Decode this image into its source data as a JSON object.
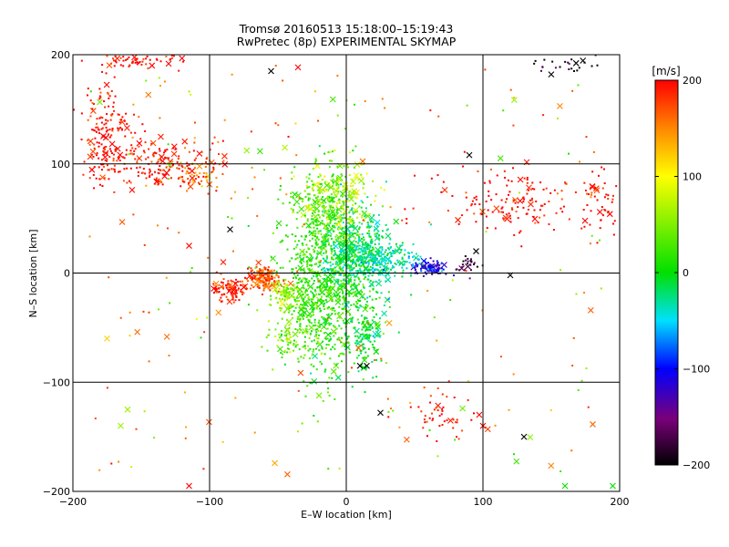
{
  "chart_data": {
    "type": "scatter",
    "title": "Tromsø 20160513 15:18:00–15:19:43",
    "subtitle": "RwPretec (8p) EXPERIMENTAL SKYMAP",
    "xlabel": "E–W location [km]",
    "ylabel": "N–S location [km]",
    "xlim": [
      -200,
      200
    ],
    "ylim": [
      -200,
      200
    ],
    "xticks": [
      -200,
      -100,
      0,
      100,
      200
    ],
    "yticks": [
      -200,
      -100,
      0,
      100,
      200
    ],
    "grid": true,
    "colorbar": {
      "label": "[m/s]",
      "range": [
        -200,
        200
      ],
      "ticks": [
        200,
        100,
        0,
        -100,
        -200
      ],
      "colormap": "rainbow: black(-200), purple, blue(-100), cyan, green(0), yellow(100), orange, red(200)"
    },
    "markers": {
      "small_points": "velocity detections",
      "x_marks": "velocity detections"
    },
    "clusters": [
      {
        "center": [
          -15,
          -15
        ],
        "extent": [
          30,
          70
        ],
        "velocity": 20,
        "count": 900
      },
      {
        "center": [
          10,
          20
        ],
        "extent": [
          25,
          35
        ],
        "velocity": -20,
        "count": 450
      },
      {
        "center": [
          -15,
          60
        ],
        "extent": [
          20,
          40
        ],
        "velocity": 30,
        "count": 250
      },
      {
        "center": [
          -5,
          70
        ],
        "extent": [
          25,
          30
        ],
        "velocity": 80,
        "count": 130
      },
      {
        "center": [
          -60,
          -5
        ],
        "extent": [
          12,
          10
        ],
        "velocity": 170,
        "count": 160
      },
      {
        "center": [
          -85,
          -15
        ],
        "extent": [
          12,
          10
        ],
        "velocity": 190,
        "count": 90
      },
      {
        "center": [
          -45,
          -20
        ],
        "extent": [
          10,
          12
        ],
        "velocity": 60,
        "count": 70
      },
      {
        "center": [
          60,
          5
        ],
        "extent": [
          12,
          6
        ],
        "velocity": -110,
        "count": 90
      },
      {
        "center": [
          90,
          10
        ],
        "extent": [
          10,
          8
        ],
        "velocity": -180,
        "count": 25
      },
      {
        "center": [
          30,
          10
        ],
        "extent": [
          25,
          12
        ],
        "velocity": -40,
        "count": 150
      },
      {
        "center": [
          15,
          -60
        ],
        "extent": [
          12,
          30
        ],
        "velocity": -10,
        "count": 120
      },
      {
        "center": [
          -40,
          -60
        ],
        "extent": [
          20,
          20
        ],
        "velocity": 50,
        "count": 60
      },
      {
        "center": [
          -175,
          130
        ],
        "extent": [
          15,
          40
        ],
        "velocity": 200,
        "count": 150
      },
      {
        "center": [
          -140,
          100
        ],
        "extent": [
          40,
          20
        ],
        "velocity": 195,
        "count": 180
      },
      {
        "center": [
          -155,
          195
        ],
        "extent": [
          25,
          6
        ],
        "velocity": 200,
        "count": 60
      },
      {
        "center": [
          -110,
          90
        ],
        "extent": [
          20,
          20
        ],
        "velocity": 160,
        "count": 60
      },
      {
        "center": [
          120,
          65
        ],
        "extent": [
          50,
          30
        ],
        "velocity": 200,
        "count": 150
      },
      {
        "center": [
          185,
          70
        ],
        "extent": [
          12,
          30
        ],
        "velocity": 200,
        "count": 40
      },
      {
        "center": [
          160,
          190
        ],
        "extent": [
          20,
          8
        ],
        "velocity": -190,
        "count": 25
      },
      {
        "center": [
          70,
          -130
        ],
        "extent": [
          20,
          20
        ],
        "velocity": 195,
        "count": 50
      },
      {
        "center": [
          0,
          0
        ],
        "extent": [
          190,
          190
        ],
        "velocity": 160,
        "count": 140
      },
      {
        "center": [
          0,
          0
        ],
        "extent": [
          190,
          190
        ],
        "velocity": 40,
        "count": 80
      }
    ],
    "outliers": [
      {
        "x": -90,
        "y": 10,
        "velocity": 190
      },
      {
        "x": -115,
        "y": 25,
        "velocity": 195
      },
      {
        "x": -175,
        "y": -60,
        "velocity": 120
      },
      {
        "x": -160,
        "y": -125,
        "velocity": 60
      },
      {
        "x": -165,
        "y": -140,
        "velocity": 60
      },
      {
        "x": 130,
        "y": -150,
        "velocity": -200
      },
      {
        "x": 90,
        "y": 108,
        "velocity": -200
      },
      {
        "x": -55,
        "y": 185,
        "velocity": -200
      },
      {
        "x": -85,
        "y": 40,
        "velocity": -200
      },
      {
        "x": 15,
        "y": -85,
        "velocity": -200
      },
      {
        "x": 25,
        "y": -128,
        "velocity": -200
      },
      {
        "x": 100,
        "y": -140,
        "velocity": 200
      },
      {
        "x": -115,
        "y": -195,
        "velocity": 200
      },
      {
        "x": 160,
        "y": -195,
        "velocity": 0
      },
      {
        "x": 195,
        "y": -195,
        "velocity": 0
      },
      {
        "x": 10,
        "y": -85,
        "velocity": -200
      },
      {
        "x": 120,
        "y": -2,
        "velocity": -200
      },
      {
        "x": 95,
        "y": 20,
        "velocity": -200
      }
    ]
  }
}
